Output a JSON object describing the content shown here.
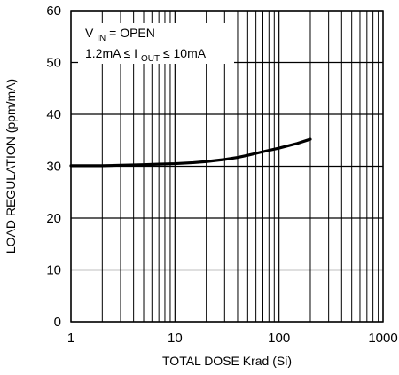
{
  "chart_data": {
    "type": "line",
    "title": "",
    "xlabel": "TOTAL DOSE Krad (Si)",
    "ylabel": "LOAD REGULATION (ppm/mA)",
    "x_scale": "log",
    "xlim": [
      1,
      1000
    ],
    "ylim": [
      0,
      60
    ],
    "x_ticks": [
      1,
      10,
      100,
      1000
    ],
    "x_tick_labels": [
      "1",
      "10",
      "100",
      "1000"
    ],
    "y_ticks": [
      0,
      10,
      20,
      30,
      40,
      50,
      60
    ],
    "y_tick_labels": [
      "0",
      "10",
      "20",
      "30",
      "40",
      "50",
      "60"
    ],
    "grid": true,
    "annotation": {
      "line1": {
        "main": "V",
        "sub": "IN",
        "rest": " = OPEN"
      },
      "line2": {
        "pre": "1.2mA ≤ I",
        "sub": "OUT",
        "post": " ≤ 10mA"
      }
    },
    "series": [
      {
        "color": "#000000",
        "x": [
          1,
          2,
          3,
          5,
          7,
          10,
          15,
          20,
          30,
          40,
          50,
          70,
          100,
          150,
          200
        ],
        "y": [
          30.1,
          30.1,
          30.2,
          30.3,
          30.4,
          30.5,
          30.7,
          30.9,
          31.3,
          31.7,
          32.1,
          32.8,
          33.5,
          34.4,
          35.2
        ]
      }
    ]
  }
}
